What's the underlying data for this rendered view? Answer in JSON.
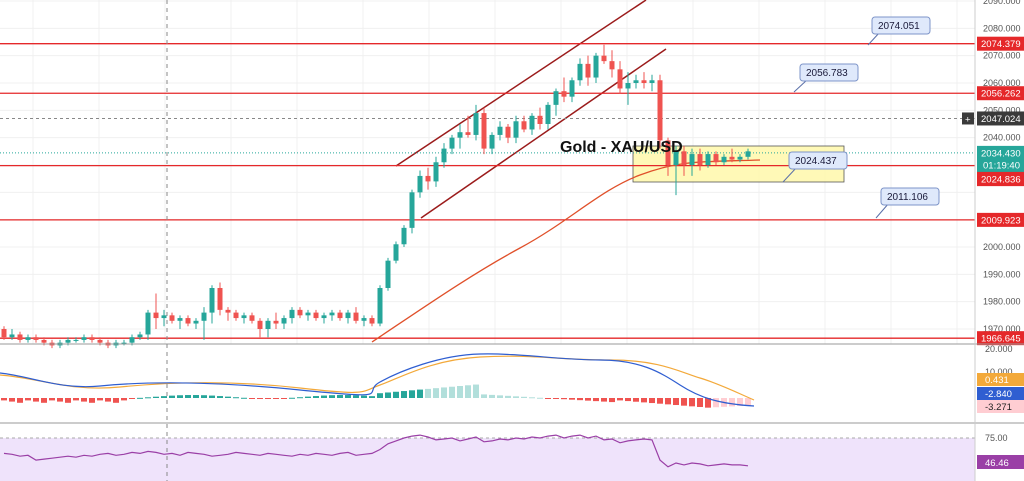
{
  "chart_data": {
    "type": "candlestick",
    "title": "Gold - XAU/USD",
    "price_axis": {
      "ylim": [
        1966,
        2090
      ],
      "ticks": [
        1970,
        1980,
        1990,
        2000,
        2010,
        2020,
        2030,
        2040,
        2050,
        2060,
        2070,
        2080,
        2090
      ],
      "tick_labels": [
        "1970.000",
        "1980.000",
        "1990.000",
        "2000.000",
        "",
        "",
        "",
        "2040.000",
        "2050.000",
        "2060.000",
        "2070.000",
        "2080.000",
        "2090.000"
      ]
    },
    "horizontal_levels": [
      {
        "name": "level-2074",
        "value": 2074.379,
        "label": "2074.379",
        "color": "#e5282a"
      },
      {
        "name": "level-2056",
        "value": 2056.262,
        "label": "2056.262",
        "color": "#e5282a"
      },
      {
        "name": "level-2029",
        "value": 2029.771,
        "label": "2029.771",
        "color": "#e5282a"
      },
      {
        "name": "level-2009",
        "value": 2009.923,
        "label": "2009.923",
        "color": "#e5282a"
      },
      {
        "name": "level-1966",
        "value": 1966.645,
        "label": "1966.645",
        "color": "#e5282a"
      }
    ],
    "dashed_level": {
      "value": 2047.024,
      "label": "2047.024"
    },
    "current_price": {
      "value": 2034.43,
      "label": "2034.430",
      "countdown": "01:19:40"
    },
    "ma_value": {
      "value": 2024.836,
      "label": "2024.836"
    },
    "callouts": [
      {
        "name": "callout-2074",
        "label": "2074.051"
      },
      {
        "name": "callout-2056",
        "label": "2056.783"
      },
      {
        "name": "callout-2024",
        "label": "2024.437"
      },
      {
        "name": "callout-2011",
        "label": "2011.106"
      }
    ],
    "candles": [
      [
        1970,
        1971,
        1966,
        1967
      ],
      [
        1967,
        1970,
        1966,
        1968
      ],
      [
        1968,
        1969,
        1965,
        1966
      ],
      [
        1966,
        1968,
        1965,
        1967
      ],
      [
        1967,
        1968,
        1965,
        1966
      ],
      [
        1966,
        1967,
        1964,
        1965
      ],
      [
        1965,
        1966,
        1963,
        1964
      ],
      [
        1964,
        1966,
        1963,
        1965
      ],
      [
        1965,
        1967,
        1964,
        1966
      ],
      [
        1966,
        1967,
        1965,
        1966
      ],
      [
        1966,
        1968,
        1965,
        1967
      ],
      [
        1967,
        1968,
        1965,
        1966
      ],
      [
        1966,
        1967,
        1964,
        1965
      ],
      [
        1965,
        1966,
        1963,
        1964
      ],
      [
        1964,
        1966,
        1963,
        1965
      ],
      [
        1965,
        1966,
        1964,
        1965
      ],
      [
        1965,
        1968,
        1964,
        1967
      ],
      [
        1967,
        1969,
        1966,
        1968
      ],
      [
        1968,
        1977,
        1966,
        1976
      ],
      [
        1976,
        1983,
        1970,
        1974
      ],
      [
        1974,
        1977,
        1971,
        1975
      ],
      [
        1975,
        1976,
        1972,
        1973
      ],
      [
        1973,
        1975,
        1970,
        1974
      ],
      [
        1974,
        1975,
        1971,
        1972
      ],
      [
        1972,
        1974,
        1970,
        1973
      ],
      [
        1973,
        1978,
        1966,
        1976
      ],
      [
        1976,
        1986,
        1972,
        1985
      ],
      [
        1985,
        1987,
        1975,
        1977
      ],
      [
        1977,
        1978,
        1973,
        1976
      ],
      [
        1976,
        1977,
        1973,
        1974
      ],
      [
        1974,
        1976,
        1972,
        1975
      ],
      [
        1975,
        1976,
        1972,
        1973
      ],
      [
        1973,
        1974,
        1967,
        1970
      ],
      [
        1970,
        1974,
        1967,
        1973
      ],
      [
        1973,
        1976,
        1970,
        1972
      ],
      [
        1972,
        1975,
        1970,
        1974
      ],
      [
        1974,
        1978,
        1972,
        1977
      ],
      [
        1977,
        1978,
        1974,
        1975
      ],
      [
        1975,
        1977,
        1973,
        1976
      ],
      [
        1976,
        1977,
        1973,
        1974
      ],
      [
        1974,
        1976,
        1972,
        1975
      ],
      [
        1975,
        1977,
        1973,
        1976
      ],
      [
        1976,
        1977,
        1973,
        1974
      ],
      [
        1974,
        1977,
        1972,
        1976
      ],
      [
        1976,
        1978,
        1972,
        1973
      ],
      [
        1973,
        1975,
        1971,
        1974
      ],
      [
        1974,
        1975,
        1971,
        1972
      ],
      [
        1972,
        1986,
        1971,
        1985
      ],
      [
        1985,
        1996,
        1984,
        1995
      ],
      [
        1995,
        2002,
        1994,
        2001
      ],
      [
        2001,
        2008,
        2000,
        2007
      ],
      [
        2007,
        2021,
        2005,
        2020
      ],
      [
        2020,
        2028,
        2018,
        2026
      ],
      [
        2026,
        2029,
        2021,
        2024
      ],
      [
        2024,
        2033,
        2022,
        2031
      ],
      [
        2031,
        2038,
        2029,
        2036
      ],
      [
        2036,
        2041,
        2034,
        2040
      ],
      [
        2040,
        2045,
        2036,
        2042
      ],
      [
        2042,
        2048,
        2040,
        2041
      ],
      [
        2041,
        2052,
        2039,
        2049
      ],
      [
        2049,
        2051,
        2034,
        2036
      ],
      [
        2036,
        2042,
        2034,
        2041
      ],
      [
        2041,
        2046,
        2039,
        2044
      ],
      [
        2044,
        2045,
        2038,
        2040
      ],
      [
        2040,
        2048,
        2038,
        2046
      ],
      [
        2046,
        2048,
        2042,
        2043
      ],
      [
        2043,
        2049,
        2041,
        2048
      ],
      [
        2048,
        2051,
        2043,
        2045
      ],
      [
        2045,
        2053,
        2043,
        2052
      ],
      [
        2052,
        2058,
        2048,
        2057
      ],
      [
        2057,
        2062,
        2053,
        2055
      ],
      [
        2055,
        2062,
        2053,
        2061
      ],
      [
        2061,
        2069,
        2059,
        2067
      ],
      [
        2067,
        2070,
        2059,
        2062
      ],
      [
        2062,
        2071,
        2060,
        2070
      ],
      [
        2070,
        2074,
        2067,
        2068
      ],
      [
        2068,
        2072,
        2062,
        2065
      ],
      [
        2065,
        2068,
        2056,
        2058
      ],
      [
        2058,
        2064,
        2052,
        2060
      ],
      [
        2060,
        2063,
        2058,
        2061
      ],
      [
        2061,
        2064,
        2058,
        2060
      ],
      [
        2060,
        2063,
        2057,
        2061
      ],
      [
        2061,
        2063,
        2036,
        2039
      ],
      [
        2039,
        2040,
        2026,
        2030
      ],
      [
        2030,
        2037,
        2019,
        2035
      ],
      [
        2035,
        2037,
        2026,
        2030
      ],
      [
        2030,
        2036,
        2026,
        2034
      ],
      [
        2034,
        2036,
        2028,
        2030
      ],
      [
        2030,
        2035,
        2029,
        2034
      ],
      [
        2034,
        2035,
        2030,
        2031
      ],
      [
        2031,
        2034,
        2030,
        2033
      ],
      [
        2033,
        2036,
        2031,
        2032
      ],
      [
        2032,
        2034,
        2031,
        2033
      ],
      [
        2033,
        2036,
        2032,
        2035
      ]
    ],
    "macd": {
      "labels": [
        "20.000",
        "10.000",
        "0.431",
        "-2.840",
        "-3.271"
      ]
    },
    "rsi": {
      "labels": [
        "75.00",
        "46.46"
      ],
      "values": [
        59,
        58,
        56,
        57,
        52,
        53,
        54,
        55,
        56,
        55,
        57,
        56,
        58,
        59,
        57,
        58,
        60,
        59,
        61,
        60,
        58,
        59,
        57,
        60,
        59,
        58,
        56,
        57,
        58,
        60,
        59,
        58,
        57,
        59,
        58,
        57,
        56,
        58,
        57,
        59,
        58,
        57,
        59,
        60,
        57,
        58,
        59,
        63,
        69,
        72,
        75,
        77,
        78,
        76,
        73,
        74,
        75,
        72,
        74,
        76,
        71,
        72,
        74,
        73,
        75,
        74,
        76,
        75,
        77,
        78,
        75,
        77,
        78,
        75,
        77,
        73,
        74,
        70,
        72,
        73,
        74,
        73,
        52,
        45,
        49,
        47,
        49,
        48,
        46,
        47,
        48,
        47,
        47,
        46
      ]
    }
  }
}
